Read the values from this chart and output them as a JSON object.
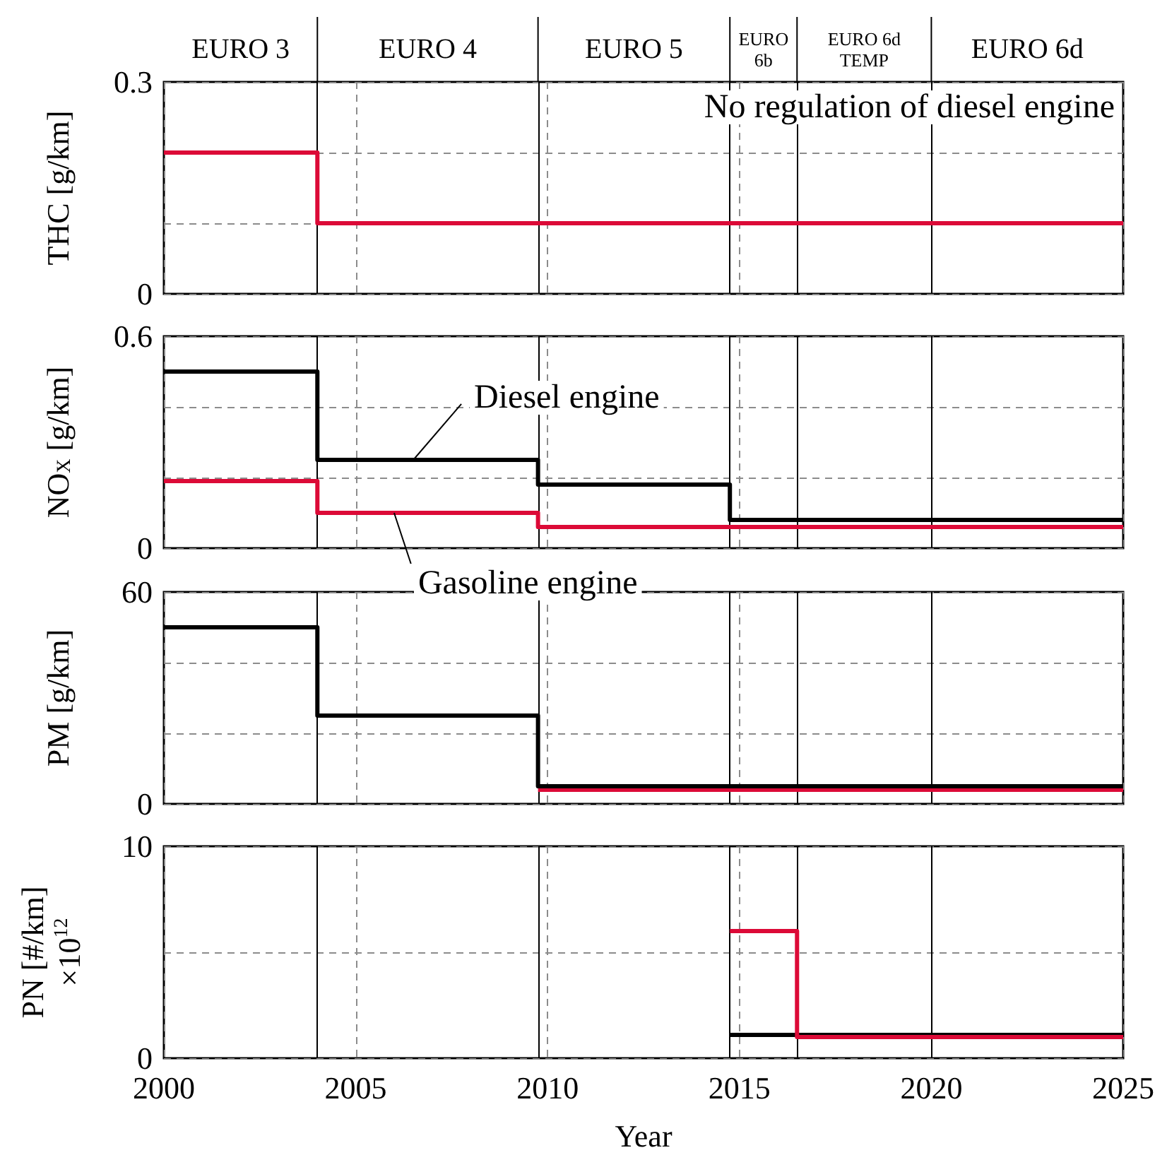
{
  "chart_data": [
    {
      "type": "step",
      "ylabel": "THC [g/km]",
      "xlim": [
        2000,
        2025
      ],
      "xticks": [
        2000,
        2005,
        2010,
        2015,
        2020,
        2025
      ],
      "ylim": [
        0,
        0.3
      ],
      "yticks": [
        0,
        {
          "value": 0.1,
          "label": null
        },
        {
          "value": 0.2,
          "label": null
        },
        0.3
      ],
      "grid": true,
      "tick_labels": "y",
      "line_style": "solid",
      "series": [
        {
          "color": "#dc0a37",
          "x": [
            2000,
            2004,
            2025
          ],
          "values": [
            0.2,
            0.1,
            0.1
          ]
        }
      ],
      "ref_lines": [
        {
          "axis": "x",
          "value": 2004,
          "color": "#000000"
        },
        {
          "axis": "x",
          "value": 2009.75,
          "color": "#000000"
        },
        {
          "axis": "x",
          "value": 2014.75,
          "color": "#000000"
        },
        {
          "axis": "x",
          "value": 2016.5,
          "color": "#000000"
        },
        {
          "axis": "x",
          "value": 2020,
          "color": "#000000"
        }
      ],
      "annotations": [
        "No regulation of diesel engine",
        "EURO 3",
        "EURO 4",
        "EURO 5",
        "EURO 6b",
        "EURO 6d TEMP",
        "EURO 6d"
      ]
    },
    {
      "type": "step",
      "ylabel": "NO$_{X}$ [g/km]",
      "xlim": [
        2000,
        2025
      ],
      "xticks": [
        2000,
        2005,
        2010,
        2015,
        2020,
        2025
      ],
      "ylim": [
        0,
        0.6
      ],
      "yticks": [
        0,
        {
          "value": 0.2,
          "label": null
        },
        {
          "value": 0.4,
          "label": null
        },
        0.6
      ],
      "grid": true,
      "tick_labels": "y",
      "line_style": "solid",
      "series": [
        {
          "color": "#000000",
          "x": [
            2000,
            2004,
            2009.75,
            2014.75,
            2025
          ],
          "values": [
            0.5,
            0.25,
            0.18,
            0.08,
            0.08
          ]
        },
        {
          "color": "#dc0a37",
          "x": [
            2000,
            2004,
            2009.75,
            2025
          ],
          "values": [
            0.19,
            0.1,
            0.06,
            0.06
          ]
        }
      ],
      "ref_lines": [
        {
          "axis": "x",
          "value": 2004,
          "color": "#000000"
        },
        {
          "axis": "x",
          "value": 2009.75,
          "color": "#000000"
        },
        {
          "axis": "x",
          "value": 2014.75,
          "color": "#000000"
        },
        {
          "axis": "x",
          "value": 2016.5,
          "color": "#000000"
        },
        {
          "axis": "x",
          "value": 2020,
          "color": "#000000"
        }
      ],
      "annotations": [
        {
          "text": "Diesel engine",
          "x": 2006.5,
          "y": 0.25
        },
        {
          "text": "Gasoline engine",
          "x": 2006,
          "y": 0.1
        }
      ]
    },
    {
      "type": "step",
      "ylabel": "PM [g/km]",
      "xlim": [
        2000,
        2025
      ],
      "xticks": [
        2000,
        2005,
        2010,
        2015,
        2020,
        2025
      ],
      "ylim": [
        0,
        60
      ],
      "yticks": [
        0,
        {
          "value": 20,
          "label": null
        },
        {
          "value": 40,
          "label": null
        },
        60
      ],
      "grid": true,
      "tick_labels": "y",
      "line_style": "solid",
      "series": [
        {
          "color": "#dc0a37",
          "x": [
            2009.75,
            2025
          ],
          "values": [
            4,
            4
          ]
        },
        {
          "color": "#000000",
          "x": [
            2000,
            2004,
            2009.75,
            2025
          ],
          "values": [
            50,
            25,
            5,
            5
          ]
        }
      ],
      "ref_lines": [
        {
          "axis": "x",
          "value": 2004,
          "color": "#000000"
        },
        {
          "axis": "x",
          "value": 2009.75,
          "color": "#000000"
        },
        {
          "axis": "x",
          "value": 2014.75,
          "color": "#000000"
        },
        {
          "axis": "x",
          "value": 2016.5,
          "color": "#000000"
        },
        {
          "axis": "x",
          "value": 2020,
          "color": "#000000"
        }
      ]
    },
    {
      "type": "step",
      "xlabel": "Year",
      "ylabel": "PN [#/km]\n×10$^{12}$",
      "xlim": [
        2000,
        2025
      ],
      "xticks": [
        2000,
        2005,
        2010,
        2015,
        2020,
        2025
      ],
      "ylim": [
        0,
        10
      ],
      "yticks": [
        0,
        {
          "value": 5,
          "label": null
        },
        10
      ],
      "grid": true,
      "line_style": "solid",
      "series": [
        {
          "color": "#000000",
          "x": [
            2014.75,
            2025
          ],
          "values": [
            1.1,
            1.1
          ]
        },
        {
          "color": "#dc0a37",
          "x": [
            2014.75,
            2016.5,
            2025
          ],
          "values": [
            6,
            1,
            1
          ]
        }
      ],
      "ref_lines": [
        {
          "axis": "x",
          "value": 2004,
          "color": "#000000"
        },
        {
          "axis": "x",
          "value": 2009.75,
          "color": "#000000"
        },
        {
          "axis": "x",
          "value": 2014.75,
          "color": "#000000"
        },
        {
          "axis": "x",
          "value": 2016.5,
          "color": "#000000"
        },
        {
          "axis": "x",
          "value": 2020,
          "color": "#000000"
        }
      ]
    }
  ]
}
